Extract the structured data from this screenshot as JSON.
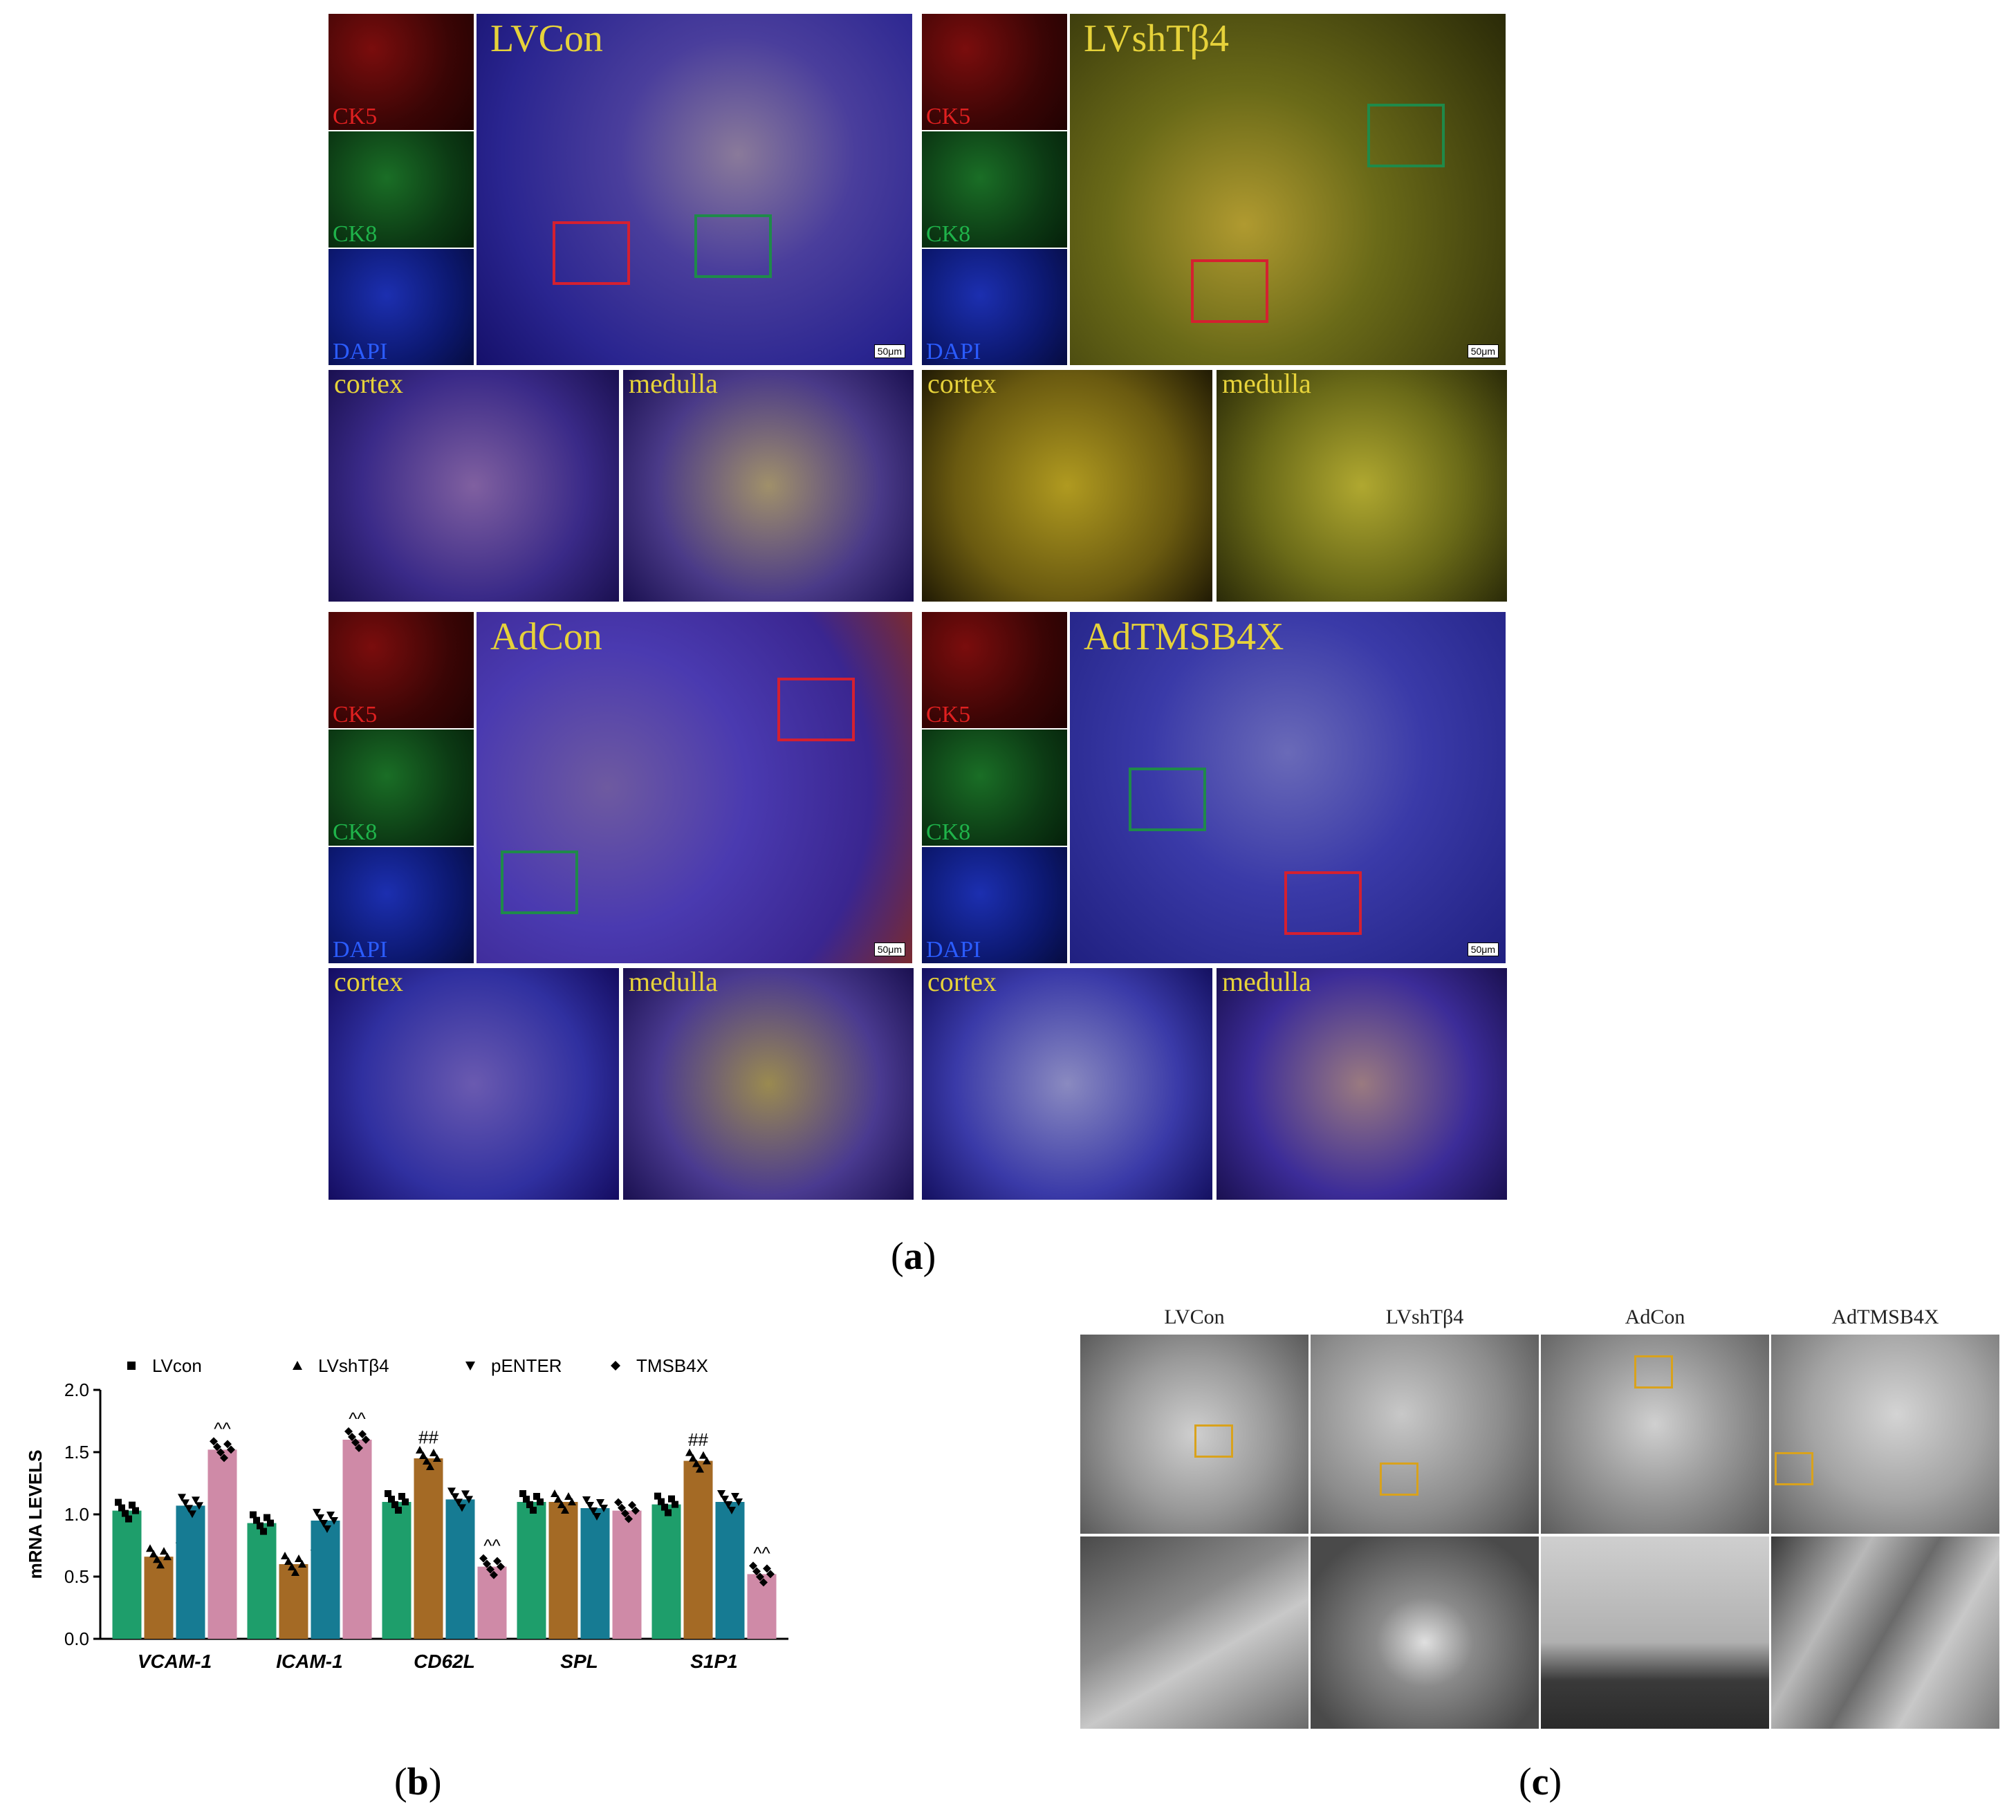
{
  "panels": {
    "a": {
      "label": "a",
      "groups": [
        {
          "name": "LVCon",
          "channels": [
            "CK5",
            "CK8",
            "DAPI"
          ],
          "scale": "50μm",
          "zoom_labels": [
            "cortex",
            "medulla"
          ]
        },
        {
          "name": "LVshTβ4",
          "channels": [
            "CK5",
            "CK8",
            "DAPI"
          ],
          "scale": "50μm",
          "zoom_labels": [
            "cortex",
            "medulla"
          ]
        },
        {
          "name": "AdCon",
          "channels": [
            "CK5",
            "CK8",
            "DAPI"
          ],
          "scale": "50μm",
          "zoom_labels": [
            "cortex",
            "medulla"
          ]
        },
        {
          "name": "AdTMSB4X",
          "channels": [
            "CK5",
            "CK8",
            "DAPI"
          ],
          "scale": "50μm",
          "zoom_labels": [
            "cortex",
            "medulla"
          ]
        }
      ]
    },
    "b": {
      "label": "b"
    },
    "c": {
      "label": "c",
      "groups": [
        "LVCon",
        "LVshTβ4",
        "AdCon",
        "AdTMSB4X"
      ]
    }
  },
  "chart_data": {
    "type": "bar",
    "ylabel": "mRNA LEVELS",
    "xlabel": "",
    "ylim": [
      0,
      2.0
    ],
    "yticks": [
      "0.0",
      "0.5",
      "1.0",
      "1.5",
      "2.0"
    ],
    "categories": [
      "VCAM-1",
      "ICAM-1",
      "CD62L",
      "SPL",
      "S1P1"
    ],
    "series": [
      {
        "name": "LVcon",
        "marker": "square",
        "color": "#1e9e6b",
        "values": [
          1.03,
          0.93,
          1.1,
          1.1,
          1.08
        ]
      },
      {
        "name": "LVshTβ4",
        "marker": "triangle",
        "color": "#a46a25",
        "values": [
          0.66,
          0.6,
          1.45,
          1.1,
          1.43
        ]
      },
      {
        "name": "pENTER",
        "marker": "triangle-down",
        "color": "#167b93",
        "values": [
          1.07,
          0.95,
          1.12,
          1.05,
          1.1
        ]
      },
      {
        "name": "TMSB4X",
        "marker": "diamond",
        "color": "#cf8aa7",
        "values": [
          1.52,
          1.6,
          0.58,
          1.03,
          0.52
        ]
      }
    ],
    "annotations": [
      {
        "category": "VCAM-1",
        "series": "LVshTβ4",
        "text": "##"
      },
      {
        "category": "VCAM-1",
        "series": "TMSB4X",
        "text": "^^"
      },
      {
        "category": "ICAM-1",
        "series": "LVshTβ4",
        "text": "##"
      },
      {
        "category": "ICAM-1",
        "series": "TMSB4X",
        "text": "^^"
      },
      {
        "category": "CD62L",
        "series": "LVshTβ4",
        "text": "##"
      },
      {
        "category": "CD62L",
        "series": "TMSB4X",
        "text": "^^"
      },
      {
        "category": "S1P1",
        "series": "LVshTβ4",
        "text": "##"
      },
      {
        "category": "S1P1",
        "series": "TMSB4X",
        "text": "^^"
      }
    ],
    "legend_position": "top"
  }
}
